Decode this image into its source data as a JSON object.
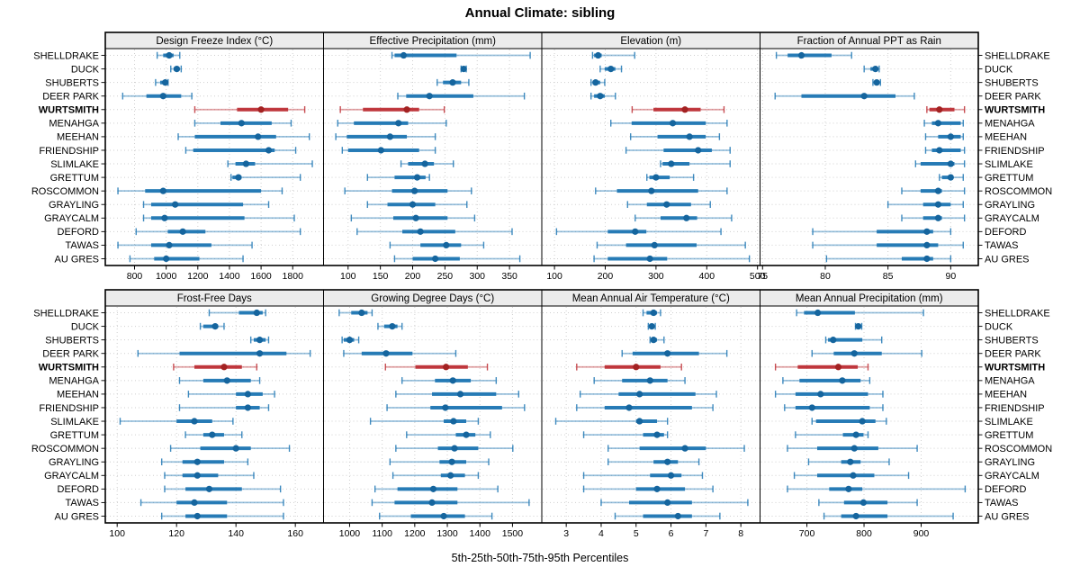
{
  "colors": {
    "series_blue": "#1F77B4",
    "series_blue_dot": "#15659E",
    "highlight_red": "#BE3036",
    "highlight_red_dot": "#A32222",
    "grid": "#CFCFCF",
    "strip_bg": "#ECECEC",
    "border": "#000000"
  },
  "chart_data": {
    "type": "dotplot-percentile-trellis",
    "title": "Annual Climate: sibling",
    "xlabel": "5th-25th-50th-75th-95th Percentiles",
    "percentile_levels": [
      5,
      25,
      50,
      75,
      95
    ],
    "highlight_category": "WURTSMITH",
    "legend_position": "none",
    "grid": "dotted",
    "categories": [
      "SHELLDRAKE",
      "DUCK",
      "SHUBERTS",
      "DEER PARK",
      "WURTSMITH",
      "MENAHGA",
      "MEEHAN",
      "FRIENDSHIP",
      "SLIMLAKE",
      "GRETTUM",
      "ROSCOMMON",
      "GRAYLING",
      "GRAYCALM",
      "DEFORD",
      "TAWAS",
      "AU GRES"
    ],
    "panels": [
      {
        "title": "Design Freeze Index (°C)",
        "ticks": [
          800,
          1000,
          1200,
          1400,
          1600,
          1800
        ],
        "xlim": [
          615,
          1995
        ],
        "values": [
          [
            943,
            981,
            1019,
            1047,
            1086
          ],
          [
            1029,
            1047,
            1067,
            1086,
            1095
          ],
          [
            933,
            962,
            994,
            1006,
            1012
          ],
          [
            725,
            875,
            981,
            1095,
            1162
          ],
          [
            1181,
            1448,
            1600,
            1771,
            1876
          ],
          [
            1181,
            1343,
            1476,
            1667,
            1790
          ],
          [
            1076,
            1181,
            1581,
            1695,
            1905
          ],
          [
            1124,
            1171,
            1648,
            1686,
            1819
          ],
          [
            1390,
            1438,
            1505,
            1562,
            1924
          ],
          [
            1410,
            1419,
            1457,
            1476,
            1848
          ],
          [
            695,
            867,
            981,
            1600,
            1733
          ],
          [
            857,
            905,
            1057,
            1486,
            1648
          ],
          [
            857,
            905,
            990,
            1495,
            1810
          ],
          [
            810,
            1010,
            1105,
            1248,
            1848
          ],
          [
            695,
            905,
            1019,
            1286,
            1543
          ],
          [
            771,
            924,
            1000,
            1210,
            1486
          ]
        ]
      },
      {
        "title": "Effective Precipitation (mm)",
        "ticks": [
          100,
          150,
          200,
          250,
          300,
          350
        ],
        "xlim": [
          62,
          400
        ],
        "values": [
          [
            168,
            172,
            186,
            268,
            382
          ],
          [
            275,
            277,
            279,
            281,
            283
          ],
          [
            238,
            247,
            262,
            275,
            287
          ],
          [
            177,
            190,
            226,
            294,
            373
          ],
          [
            88,
            123,
            191,
            210,
            249
          ],
          [
            84,
            109,
            178,
            193,
            252
          ],
          [
            81,
            98,
            165,
            191,
            235
          ],
          [
            91,
            100,
            151,
            210,
            235
          ],
          [
            182,
            193,
            219,
            233,
            263
          ],
          [
            130,
            172,
            207,
            220,
            226
          ],
          [
            95,
            168,
            203,
            254,
            291
          ],
          [
            130,
            161,
            200,
            235,
            284
          ],
          [
            105,
            170,
            205,
            254,
            296
          ],
          [
            114,
            184,
            212,
            266,
            354
          ],
          [
            165,
            212,
            252,
            275,
            310
          ],
          [
            172,
            200,
            235,
            273,
            366
          ]
        ]
      },
      {
        "title": "Elevation (m)",
        "ticks": [
          100,
          200,
          300,
          400,
          500
        ],
        "xlim": [
          75,
          505
        ],
        "values": [
          [
            175,
            178,
            186,
            193,
            258
          ],
          [
            190,
            199,
            211,
            220,
            232
          ],
          [
            172,
            175,
            181,
            190,
            199
          ],
          [
            172,
            178,
            190,
            199,
            220
          ],
          [
            253,
            295,
            357,
            388,
            434
          ],
          [
            211,
            252,
            333,
            398,
            440
          ],
          [
            250,
            303,
            366,
            398,
            425
          ],
          [
            241,
            315,
            383,
            410,
            446
          ],
          [
            309,
            313,
            330,
            366,
            446
          ],
          [
            282,
            287,
            300,
            327,
            374
          ],
          [
            181,
            223,
            291,
            383,
            440
          ],
          [
            244,
            282,
            321,
            369,
            407
          ],
          [
            259,
            309,
            360,
            381,
            449
          ],
          [
            104,
            205,
            259,
            281,
            428
          ],
          [
            184,
            241,
            297,
            380,
            476
          ],
          [
            178,
            205,
            288,
            322,
            484
          ]
        ]
      },
      {
        "title": "Fraction of Annual PPT as Rain",
        "ticks": [
          75,
          80,
          85,
          90
        ],
        "xlim": [
          74.8,
          92.2
        ],
        "values": [
          [
            76.1,
            77.0,
            78.1,
            80.5,
            82.1
          ],
          [
            83.1,
            83.6,
            84.0,
            84.1,
            84.3
          ],
          [
            83.8,
            84.0,
            84.1,
            84.2,
            84.4
          ],
          [
            76.0,
            78.1,
            83.1,
            85.6,
            87.1
          ],
          [
            88.1,
            88.3,
            89.1,
            90.3,
            91.1
          ],
          [
            87.9,
            88.5,
            89.0,
            90.8,
            91.0
          ],
          [
            88.0,
            89.0,
            90.0,
            90.8,
            91.0
          ],
          [
            88.0,
            88.5,
            89.1,
            90.8,
            91.1
          ],
          [
            87.2,
            87.6,
            90.0,
            90.3,
            91.1
          ],
          [
            89.1,
            89.3,
            90.0,
            90.2,
            91.0
          ],
          [
            86.1,
            87.6,
            89.0,
            89.3,
            91.1
          ],
          [
            85.0,
            87.8,
            89.0,
            90.0,
            91.0
          ],
          [
            86.1,
            87.8,
            89.0,
            89.3,
            91.1
          ],
          [
            79.0,
            84.1,
            88.1,
            88.6,
            90.0
          ],
          [
            79.0,
            84.1,
            88.1,
            89.0,
            91.0
          ],
          [
            80.1,
            86.1,
            88.1,
            88.6,
            90.0
          ]
        ]
      },
      {
        "title": "Frost-Free Days",
        "ticks": [
          100,
          120,
          140,
          160
        ],
        "xlim": [
          96,
          169.5
        ],
        "values": [
          [
            131,
            141,
            147,
            149,
            150
          ],
          [
            128,
            129,
            133,
            134,
            136
          ],
          [
            145,
            146,
            148,
            150,
            151
          ],
          [
            107,
            121,
            148,
            157,
            165
          ],
          [
            119,
            126,
            136,
            142,
            147
          ],
          [
            121,
            129,
            137,
            145,
            148
          ],
          [
            124,
            140,
            144,
            149,
            153
          ],
          [
            121,
            140,
            144,
            148,
            151
          ],
          [
            101,
            120,
            126,
            132,
            139
          ],
          [
            123,
            129,
            132,
            136,
            142
          ],
          [
            118,
            128,
            140,
            145,
            158
          ],
          [
            115,
            122,
            127,
            136,
            144
          ],
          [
            116,
            122,
            127,
            134,
            146
          ],
          [
            116,
            123,
            131,
            142,
            155
          ],
          [
            108,
            120,
            126,
            137,
            156
          ],
          [
            115,
            123,
            127,
            137,
            156
          ]
        ]
      },
      {
        "title": "Growing Degree Days (°C)",
        "ticks": [
          1000,
          1100,
          1200,
          1300,
          1400,
          1500
        ],
        "xlim": [
          920,
          1590
        ],
        "values": [
          [
            968,
            1005,
            1037,
            1055,
            1069
          ],
          [
            1087,
            1106,
            1131,
            1147,
            1161
          ],
          [
            977,
            982,
            1000,
            1014,
            1028
          ],
          [
            982,
            1037,
            1112,
            1193,
            1326
          ],
          [
            1110,
            1202,
            1296,
            1363,
            1423
          ],
          [
            1161,
            1262,
            1317,
            1372,
            1450
          ],
          [
            1142,
            1253,
            1340,
            1450,
            1519
          ],
          [
            1115,
            1248,
            1294,
            1468,
            1537
          ],
          [
            1064,
            1289,
            1319,
            1358,
            1395
          ],
          [
            1175,
            1326,
            1358,
            1386,
            1432
          ],
          [
            1142,
            1271,
            1322,
            1395,
            1501
          ],
          [
            1124,
            1276,
            1314,
            1358,
            1427
          ],
          [
            1133,
            1280,
            1310,
            1354,
            1395
          ],
          [
            1078,
            1147,
            1257,
            1331,
            1455
          ],
          [
            1069,
            1138,
            1253,
            1331,
            1551
          ],
          [
            1092,
            1188,
            1289,
            1354,
            1437
          ]
        ]
      },
      {
        "title": "Mean Annual Air Temperature (°C)",
        "ticks": [
          3,
          4,
          5,
          6,
          7,
          8
        ],
        "xlim": [
          2.3,
          8.55
        ],
        "values": [
          [
            5.2,
            5.3,
            5.5,
            5.6,
            5.7
          ],
          [
            5.35,
            5.4,
            5.45,
            5.5,
            5.55
          ],
          [
            5.4,
            5.45,
            5.5,
            5.6,
            5.8
          ],
          [
            4.6,
            4.9,
            5.9,
            6.8,
            7.6
          ],
          [
            3.3,
            4.1,
            5.0,
            5.7,
            6.3
          ],
          [
            3.8,
            4.6,
            5.4,
            5.9,
            6.4
          ],
          [
            3.4,
            4.5,
            5.1,
            6.7,
            7.3
          ],
          [
            3.3,
            4.1,
            4.8,
            6.6,
            7.2
          ],
          [
            2.7,
            5.0,
            5.1,
            5.6,
            5.9
          ],
          [
            3.5,
            5.2,
            5.6,
            5.8,
            5.9
          ],
          [
            4.2,
            5.1,
            6.4,
            7.0,
            8.1
          ],
          [
            4.2,
            5.5,
            5.9,
            6.2,
            6.8
          ],
          [
            3.5,
            5.4,
            6.0,
            6.3,
            6.9
          ],
          [
            3.5,
            5.0,
            5.6,
            6.4,
            7.2
          ],
          [
            4.0,
            4.8,
            5.9,
            6.6,
            8.2
          ],
          [
            4.4,
            5.2,
            6.2,
            6.6,
            7.4
          ]
        ]
      },
      {
        "title": "Mean Annual Precipitation (mm)",
        "ticks": [
          700,
          800,
          900
        ],
        "xlim": [
          618,
          1000
        ],
        "values": [
          [
            682,
            695,
            719,
            784,
            904
          ],
          [
            785,
            788,
            790,
            793,
            796
          ],
          [
            733,
            737,
            746,
            797,
            831
          ],
          [
            709,
            747,
            783,
            831,
            901
          ],
          [
            645,
            684,
            755,
            789,
            807
          ],
          [
            658,
            687,
            762,
            794,
            810
          ],
          [
            645,
            680,
            724,
            807,
            833
          ],
          [
            661,
            680,
            709,
            810,
            833
          ],
          [
            709,
            716,
            797,
            820,
            839
          ],
          [
            680,
            763,
            786,
            799,
            807
          ],
          [
            666,
            718,
            783,
            825,
            893
          ],
          [
            703,
            760,
            776,
            794,
            844
          ],
          [
            678,
            718,
            781,
            818,
            878
          ],
          [
            666,
            739,
            773,
            797,
            977
          ],
          [
            721,
            765,
            799,
            841,
            893
          ],
          [
            730,
            760,
            786,
            841,
            956
          ]
        ]
      }
    ]
  }
}
